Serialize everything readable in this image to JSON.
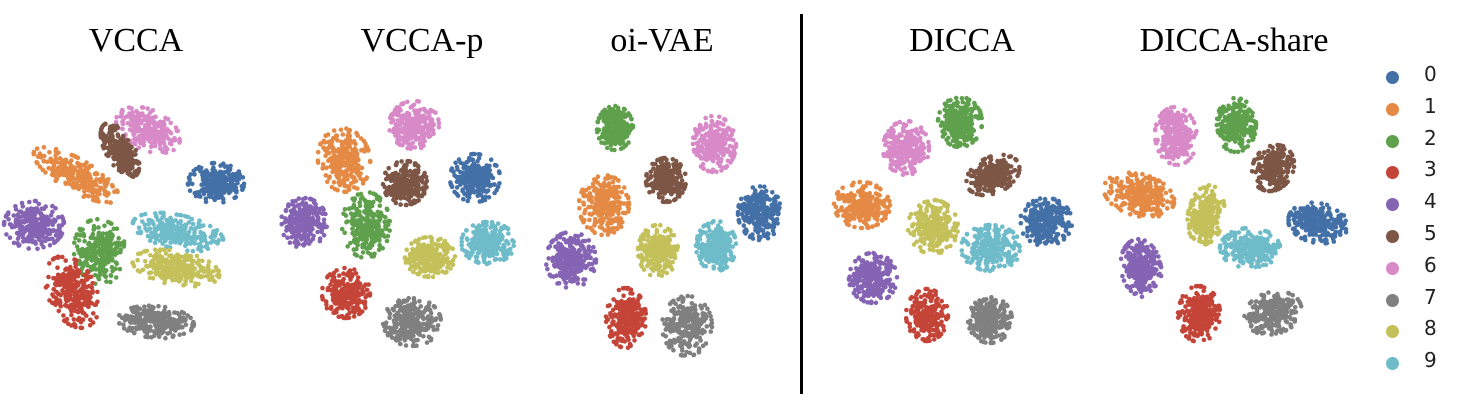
{
  "chart_data": {
    "type": "scatter",
    "description_note": "",
    "panels": [
      {
        "title": "VCCA"
      },
      {
        "title": "VCCA-p"
      },
      {
        "title": "oi-VAE"
      },
      {
        "title": "DICCA"
      },
      {
        "title": "DICCA-share"
      }
    ],
    "series": [
      {
        "name": "0",
        "color": "#4470a8"
      },
      {
        "name": "1",
        "color": "#e58a45"
      },
      {
        "name": "2",
        "color": "#5ea04c"
      },
      {
        "name": "3",
        "color": "#c44538"
      },
      {
        "name": "4",
        "color": "#8564b4"
      },
      {
        "name": "5",
        "color": "#7d5646"
      },
      {
        "name": "6",
        "color": "#d88ac8"
      },
      {
        "name": "7",
        "color": "#808080"
      },
      {
        "name": "8",
        "color": "#c4c05a"
      },
      {
        "name": "9",
        "color": "#6ebbc9"
      }
    ],
    "legend_position": "right",
    "grid": false,
    "axes_visible": false
  }
}
